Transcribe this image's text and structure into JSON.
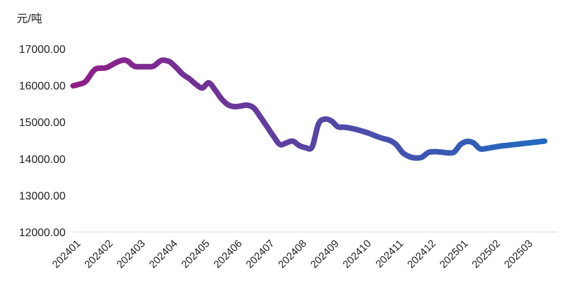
{
  "chart_data": {
    "type": "line",
    "title": "",
    "xlabel": "",
    "ylabel": "元/吨",
    "ylim": [
      12000,
      17000
    ],
    "grid": false,
    "legend": "none",
    "y_ticks": [
      "12000.00",
      "13000.00",
      "14000.00",
      "15000.00",
      "16000.00",
      "17000.00"
    ],
    "categories": [
      "202401",
      "202402",
      "202403",
      "202404",
      "202405",
      "202406",
      "202407",
      "202408",
      "202409",
      "202410",
      "202411",
      "202412",
      "202501",
      "202502",
      "202503"
    ],
    "colors": {
      "start": "#a0127e",
      "end": "#1a6fc4",
      "axis": "#d9d9d9"
    },
    "series": [
      {
        "x": [
          0,
          0.1,
          0.18,
          0.3,
          0.4,
          0.5,
          0.6,
          0.7,
          0.8,
          0.9,
          1.0,
          1.1,
          1.2,
          1.3,
          1.4,
          1.5,
          1.6,
          1.7,
          1.8,
          1.9,
          2.0,
          2.1,
          2.2,
          2.3,
          2.4,
          2.5,
          2.6,
          2.7,
          2.8,
          2.9,
          3.0,
          3.2,
          3.4,
          3.6,
          3.8,
          4.0,
          4.2,
          4.4,
          4.6,
          4.8,
          5.0,
          5.2,
          5.4,
          5.6,
          5.8,
          6.0,
          6.2,
          6.4,
          6.6,
          6.8,
          7.0,
          7.2,
          7.4,
          7.6,
          7.8,
          8.0,
          8.2,
          8.4,
          8.6,
          8.8,
          9.0,
          9.2,
          9.4,
          9.6,
          9.8,
          10.0,
          10.2,
          10.4,
          10.6,
          10.8,
          11.0,
          11.2,
          11.4,
          11.6,
          11.8,
          12.0,
          12.2,
          12.4,
          12.6,
          12.8,
          13.0,
          13.2,
          13.4,
          13.6,
          13.8,
          14.0,
          14.2,
          14.4,
          14.6
        ],
        "values": [
          15990,
          16010,
          16030,
          16060,
          16120,
          16240,
          16370,
          16450,
          16470,
          16470,
          16480,
          16510,
          16560,
          16610,
          16650,
          16680,
          16690,
          16660,
          16580,
          16520,
          16510,
          16510,
          16510,
          16510,
          16510,
          16530,
          16600,
          16670,
          16690,
          16670,
          16640,
          16480,
          16300,
          16180,
          16030,
          15930,
          16070,
          15870,
          15630,
          15470,
          15420,
          15440,
          15460,
          15380,
          15140,
          14880,
          14620,
          14390,
          14430,
          14480,
          14360,
          14300,
          14320,
          14950,
          15080,
          15030,
          14870,
          14860,
          14830,
          14790,
          14740,
          14680,
          14610,
          14550,
          14500,
          14390,
          14170,
          14060,
          14020,
          14040,
          14170,
          14190,
          14180,
          14160,
          14180,
          14390,
          14470,
          14430,
          14270,
          14280,
          14310,
          14340,
          14360,
          14380,
          14400,
          14420,
          14440,
          14460,
          14480
        ]
      }
    ]
  }
}
